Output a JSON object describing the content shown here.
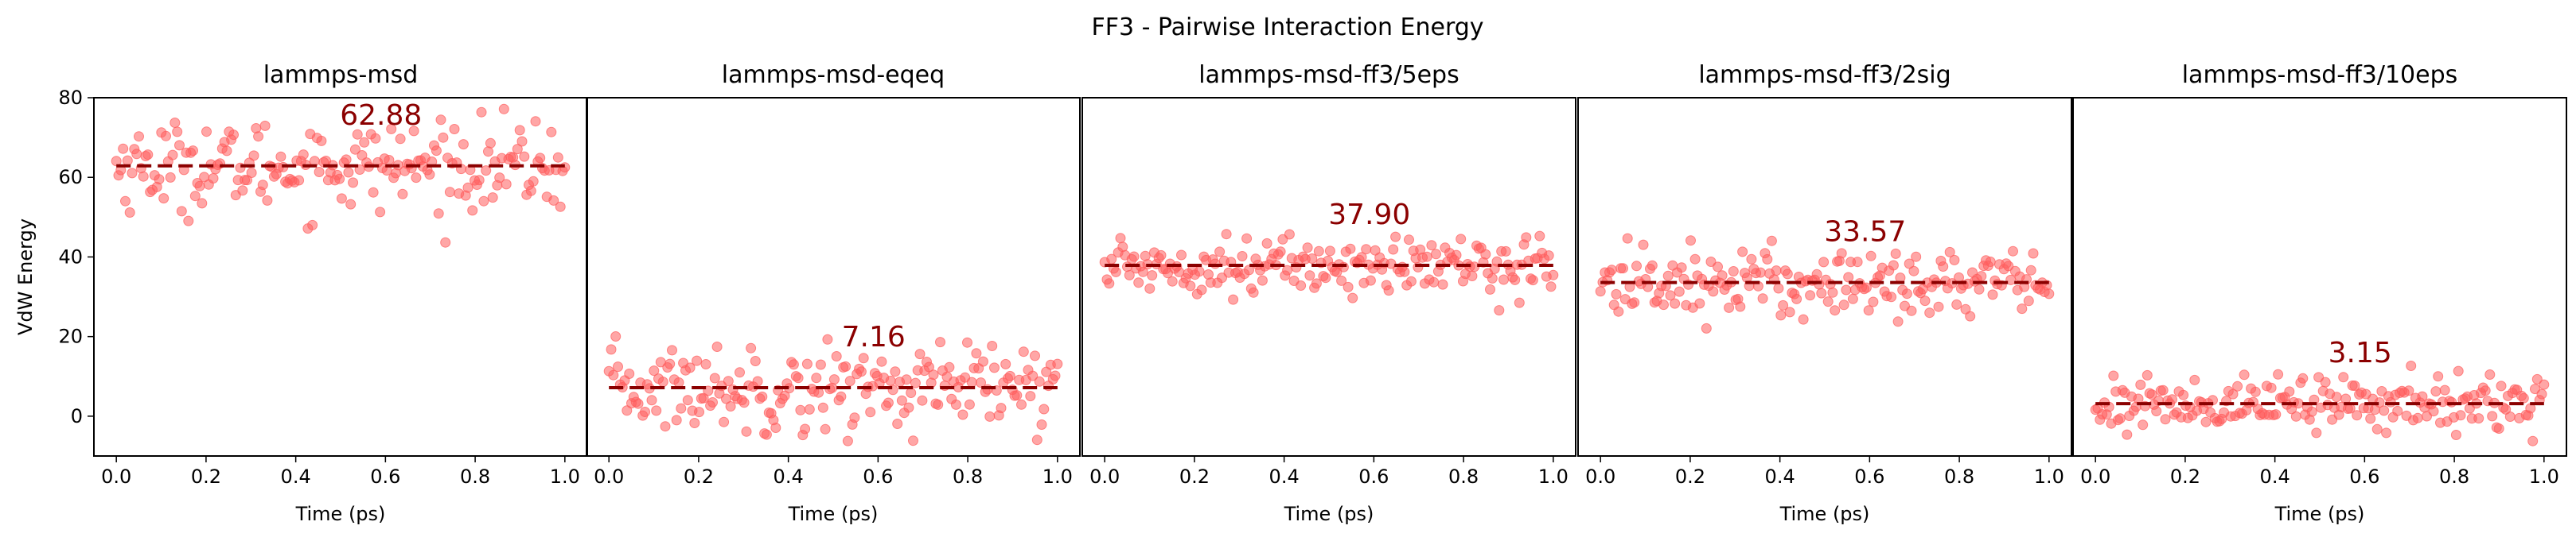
{
  "figure": {
    "title": "FF3 - Pairwise Interaction Energy"
  },
  "style": {
    "point_color": "#ff5c5c",
    "point_alpha": 0.55,
    "mean_line_color": "#8b0000"
  },
  "chart_data": [
    {
      "type": "scatter",
      "title": "lammps-msd",
      "xlabel": "Time (ps)",
      "ylabel": "VdW Energy",
      "xlim": [
        -0.05,
        1.05
      ],
      "ylim": [
        -10,
        80
      ],
      "xticks": [
        "0.0",
        "0.2",
        "0.4",
        "0.6",
        "0.8",
        "1.0"
      ],
      "yticks": [
        "0",
        "20",
        "40",
        "60",
        "80"
      ],
      "n_points": 200,
      "x_range": [
        0,
        1
      ],
      "mean": 62.88,
      "mean_label": "62.88",
      "approx_spread_sd": 5.5
    },
    {
      "type": "scatter",
      "title": "lammps-msd-eqeq",
      "xlabel": "Time (ps)",
      "xlim": [
        -0.05,
        1.05
      ],
      "ylim": [
        -10,
        80
      ],
      "xticks": [
        "0.0",
        "0.2",
        "0.4",
        "0.6",
        "0.8",
        "1.0"
      ],
      "n_points": 200,
      "x_range": [
        0,
        1
      ],
      "mean": 7.16,
      "mean_label": "7.16",
      "approx_spread_sd": 5.5
    },
    {
      "type": "scatter",
      "title": "lammps-msd-ff3/5eps",
      "xlabel": "Time (ps)",
      "xlim": [
        -0.05,
        1.05
      ],
      "ylim": [
        -10,
        80
      ],
      "xticks": [
        "0.0",
        "0.2",
        "0.4",
        "0.6",
        "0.8",
        "1.0"
      ],
      "n_points": 200,
      "x_range": [
        0,
        1
      ],
      "mean": 37.9,
      "mean_label": "37.90",
      "approx_spread_sd": 3.5
    },
    {
      "type": "scatter",
      "title": "lammps-msd-ff3/2sig",
      "xlabel": "Time (ps)",
      "xlim": [
        -0.05,
        1.05
      ],
      "ylim": [
        -10,
        80
      ],
      "xticks": [
        "0.0",
        "0.2",
        "0.4",
        "0.6",
        "0.8",
        "1.0"
      ],
      "n_points": 200,
      "x_range": [
        0,
        1
      ],
      "mean": 33.57,
      "mean_label": "33.57",
      "approx_spread_sd": 4.5
    },
    {
      "type": "scatter",
      "title": "lammps-msd-ff3/10eps",
      "xlabel": "Time (ps)",
      "xlim": [
        -0.05,
        1.05
      ],
      "ylim": [
        -10,
        80
      ],
      "xticks": [
        "0.0",
        "0.2",
        "0.4",
        "0.6",
        "0.8",
        "1.0"
      ],
      "n_points": 200,
      "x_range": [
        0,
        1
      ],
      "mean": 3.15,
      "mean_label": "3.15",
      "approx_spread_sd": 3.5
    }
  ]
}
